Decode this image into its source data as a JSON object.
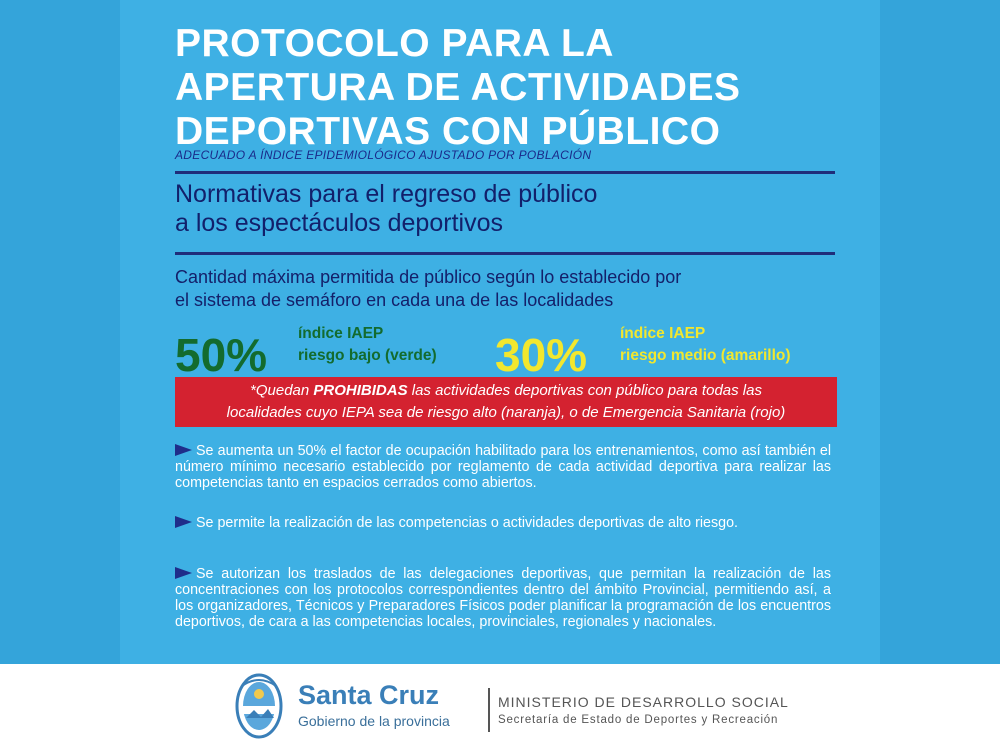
{
  "poster": {
    "title_lines": [
      "PROTOCOLO PARA LA",
      "APERTURA DE ACTIVIDADES",
      "DEPORTIVAS CON PÚBLICO"
    ],
    "subtitle": "ADECUADO A ÍNDICE EPIDEMIOLÓGICO AJUSTADO POR POBLACIÓN",
    "heading_lines": [
      "Normativas para el regreso de público",
      "a los espectáculos deportivos"
    ],
    "intro_lines": [
      "Cantidad máxima permitida de público según lo establecido por",
      "el sistema de semáforo en cada una de las localidades"
    ],
    "green": {
      "percent": "50%",
      "line1": "índice IAEP",
      "line2": "riesgo bajo (verde)",
      "color": "#136b2e"
    },
    "yellow": {
      "percent": "30%",
      "line1": "índice IAEP",
      "line2": "riesgo medio (amarillo)",
      "color": "#f2e72e"
    },
    "alert": {
      "prefix": "*Quedan ",
      "bold": "PROHIBIDAS",
      "rest1": " las actividades deportivas con público para todas las",
      "line2": "localidades cuyo IEPA sea de riesgo alto (naranja), o de Emergencia Sanitaria (rojo)",
      "color": "#d42230"
    },
    "bullets": [
      "Se aumenta un 50% el factor de ocupación habilitado para los entrenamientos, como así también el número mínimo necesario establecido por reglamento de cada actividad deportiva para realizar las competencias tanto en espacios cerrados como abiertos.",
      "Se permite la realización de las competencias o actividades deportivas de alto riesgo.",
      "Se autorizan los traslados de las delegaciones deportivas, que permitan la realización de las concentraciones con los protocolos correspondientes dentro del ámbito Provincial, permitiendo así, a los organizadores, Técnicos y Preparadores Físicos poder planificar la programación de los encuentros deportivos, de cara a las competencias locales, provinciales, regionales y nacionales."
    ]
  },
  "footer": {
    "brand": "Santa Cruz",
    "brand_sub": "Gobierno de la provincia",
    "ministry": "MINISTERIO DE DESARROLLO SOCIAL",
    "ministry_sub": "Secretaría de Estado de Deportes y Recreación",
    "crest_icon": "provincial-crest-icon"
  },
  "colors": {
    "background": "#3eb0e4",
    "title": "#ffffff",
    "navy": "#14206a"
  }
}
